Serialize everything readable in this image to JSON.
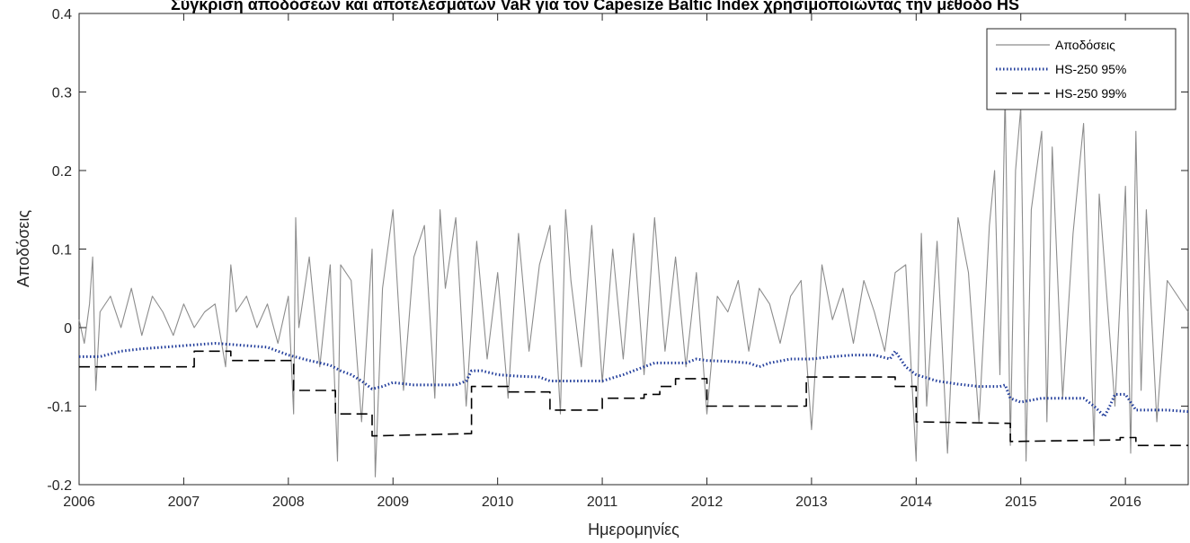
{
  "chart_data": {
    "type": "line",
    "title": "Σύγκριση αποδόσεων και αποτελεσμάτων VaR για τον Capesize Baltic Index χρησιμοποιώντας την μέθοδο HS",
    "xlabel": "Ημερομηνίες",
    "ylabel": "Αποδόσεις",
    "xlim": [
      2006,
      2016.6
    ],
    "ylim": [
      -0.2,
      0.4
    ],
    "x_ticks": [
      "2006",
      "2007",
      "2008",
      "2009",
      "2010",
      "2011",
      "2012",
      "2013",
      "2014",
      "2015",
      "2016"
    ],
    "y_ticks": [
      "-0.2",
      "-0.1",
      "0",
      "0.1",
      "0.2",
      "0.3",
      "0.4"
    ],
    "grid": false,
    "legend_position": "top-right",
    "series": [
      {
        "name": "Αποδόσεις",
        "style": "solid",
        "color": "#8c8c8c",
        "x": [
          2006.0,
          2006.05,
          2006.1,
          2006.13,
          2006.16,
          2006.2,
          2006.3,
          2006.4,
          2006.5,
          2006.6,
          2006.7,
          2006.8,
          2006.9,
          2007.0,
          2007.1,
          2007.2,
          2007.3,
          2007.4,
          2007.45,
          2007.5,
          2007.6,
          2007.7,
          2007.8,
          2007.9,
          2008.0,
          2008.05,
          2008.07,
          2008.1,
          2008.2,
          2008.3,
          2008.4,
          2008.47,
          2008.5,
          2008.6,
          2008.7,
          2008.8,
          2008.83,
          2008.9,
          2009.0,
          2009.1,
          2009.2,
          2009.3,
          2009.4,
          2009.45,
          2009.5,
          2009.6,
          2009.7,
          2009.8,
          2009.9,
          2010.0,
          2010.1,
          2010.2,
          2010.3,
          2010.4,
          2010.5,
          2010.6,
          2010.65,
          2010.7,
          2010.8,
          2010.9,
          2011.0,
          2011.1,
          2011.2,
          2011.3,
          2011.4,
          2011.5,
          2011.6,
          2011.7,
          2011.8,
          2011.9,
          2012.0,
          2012.1,
          2012.2,
          2012.3,
          2012.4,
          2012.5,
          2012.6,
          2012.7,
          2012.8,
          2012.9,
          2013.0,
          2013.1,
          2013.2,
          2013.3,
          2013.4,
          2013.5,
          2013.6,
          2013.7,
          2013.8,
          2013.9,
          2014.0,
          2014.05,
          2014.1,
          2014.2,
          2014.3,
          2014.4,
          2014.5,
          2014.6,
          2014.7,
          2014.75,
          2014.8,
          2014.85,
          2014.9,
          2014.95,
          2015.0,
          2015.05,
          2015.1,
          2015.2,
          2015.25,
          2015.3,
          2015.4,
          2015.5,
          2015.6,
          2015.7,
          2015.75,
          2015.8,
          2015.9,
          2016.0,
          2016.05,
          2016.1,
          2016.15,
          2016.2,
          2016.3,
          2016.4,
          2016.5,
          2016.6
        ],
        "y": [
          0.01,
          -0.02,
          0.03,
          0.09,
          -0.08,
          0.02,
          0.04,
          0.0,
          0.05,
          -0.01,
          0.04,
          0.02,
          -0.01,
          0.03,
          0.0,
          0.02,
          0.03,
          -0.05,
          0.08,
          0.02,
          0.04,
          0.0,
          0.03,
          -0.02,
          0.04,
          -0.11,
          0.14,
          0.0,
          0.09,
          -0.05,
          0.08,
          -0.17,
          0.08,
          0.06,
          -0.12,
          0.1,
          -0.19,
          0.05,
          0.15,
          -0.08,
          0.09,
          0.13,
          -0.09,
          0.15,
          0.05,
          0.14,
          -0.1,
          0.11,
          -0.04,
          0.07,
          -0.09,
          0.12,
          -0.03,
          0.08,
          0.13,
          -0.11,
          0.15,
          0.06,
          -0.05,
          0.13,
          -0.07,
          0.1,
          -0.04,
          0.12,
          -0.06,
          0.14,
          -0.03,
          0.09,
          -0.05,
          0.07,
          -0.11,
          0.04,
          0.02,
          0.06,
          -0.03,
          0.05,
          0.03,
          -0.02,
          0.04,
          0.06,
          -0.13,
          0.08,
          0.01,
          0.05,
          -0.02,
          0.06,
          0.02,
          -0.03,
          0.07,
          0.08,
          -0.17,
          0.12,
          -0.1,
          0.11,
          -0.16,
          0.14,
          0.07,
          -0.12,
          0.13,
          0.2,
          -0.06,
          0.3,
          -0.15,
          0.2,
          0.28,
          -0.17,
          0.15,
          0.25,
          -0.12,
          0.23,
          -0.09,
          0.12,
          0.26,
          -0.15,
          0.17,
          0.08,
          -0.1,
          0.18,
          -0.16,
          0.25,
          -0.08,
          0.15,
          -0.12,
          0.06,
          0.04,
          0.02
        ]
      },
      {
        "name": "HS-250 95%",
        "style": "dotted",
        "color": "#1f3b9a",
        "x": [
          2006.0,
          2006.2,
          2006.4,
          2006.6,
          2006.8,
          2007.0,
          2007.3,
          2007.5,
          2007.8,
          2008.0,
          2008.2,
          2008.4,
          2008.5,
          2008.6,
          2008.7,
          2008.8,
          2008.9,
          2009.0,
          2009.2,
          2009.4,
          2009.6,
          2009.7,
          2009.75,
          2009.85,
          2010.0,
          2010.2,
          2010.4,
          2010.5,
          2010.6,
          2010.8,
          2011.0,
          2011.2,
          2011.4,
          2011.5,
          2011.6,
          2011.8,
          2011.9,
          2012.0,
          2012.2,
          2012.4,
          2012.5,
          2012.6,
          2012.8,
          2013.0,
          2013.2,
          2013.4,
          2013.6,
          2013.75,
          2013.8,
          2013.85,
          2013.9,
          2014.0,
          2014.2,
          2014.4,
          2014.6,
          2014.8,
          2014.85,
          2014.9,
          2015.0,
          2015.2,
          2015.4,
          2015.6,
          2015.7,
          2015.8,
          2015.85,
          2015.9,
          2016.0,
          2016.1,
          2016.2,
          2016.4,
          2016.6
        ],
        "y": [
          -0.037,
          -0.037,
          -0.03,
          -0.027,
          -0.025,
          -0.023,
          -0.02,
          -0.022,
          -0.025,
          -0.035,
          -0.042,
          -0.048,
          -0.055,
          -0.06,
          -0.068,
          -0.078,
          -0.075,
          -0.07,
          -0.073,
          -0.073,
          -0.073,
          -0.068,
          -0.055,
          -0.055,
          -0.06,
          -0.062,
          -0.063,
          -0.068,
          -0.068,
          -0.068,
          -0.068,
          -0.06,
          -0.05,
          -0.045,
          -0.045,
          -0.045,
          -0.04,
          -0.042,
          -0.043,
          -0.045,
          -0.05,
          -0.045,
          -0.04,
          -0.04,
          -0.037,
          -0.035,
          -0.035,
          -0.04,
          -0.03,
          -0.04,
          -0.05,
          -0.06,
          -0.068,
          -0.072,
          -0.075,
          -0.075,
          -0.073,
          -0.09,
          -0.095,
          -0.09,
          -0.09,
          -0.09,
          -0.1,
          -0.113,
          -0.1,
          -0.085,
          -0.085,
          -0.105,
          -0.105,
          -0.105,
          -0.107
        ]
      },
      {
        "name": "HS-250 99%",
        "style": "dashed",
        "color": "#000000",
        "x": [
          2006.0,
          2007.1,
          2007.1,
          2007.45,
          2007.45,
          2008.05,
          2008.05,
          2008.45,
          2008.45,
          2008.8,
          2008.8,
          2009.75,
          2009.75,
          2010.1,
          2010.1,
          2010.5,
          2010.5,
          2011.0,
          2011.0,
          2011.4,
          2011.4,
          2011.55,
          2011.55,
          2011.7,
          2011.7,
          2012.0,
          2012.0,
          2012.95,
          2012.95,
          2013.8,
          2013.8,
          2014.0,
          2014.0,
          2014.9,
          2014.9,
          2015.95,
          2015.95,
          2016.1,
          2016.1,
          2016.6
        ],
        "y": [
          -0.05,
          -0.05,
          -0.03,
          -0.03,
          -0.042,
          -0.042,
          -0.08,
          -0.08,
          -0.11,
          -0.11,
          -0.138,
          -0.135,
          -0.075,
          -0.075,
          -0.082,
          -0.082,
          -0.105,
          -0.105,
          -0.09,
          -0.09,
          -0.085,
          -0.085,
          -0.075,
          -0.075,
          -0.065,
          -0.065,
          -0.1,
          -0.1,
          -0.063,
          -0.063,
          -0.075,
          -0.075,
          -0.12,
          -0.122,
          -0.145,
          -0.143,
          -0.14,
          -0.14,
          -0.15,
          -0.15
        ]
      }
    ]
  }
}
